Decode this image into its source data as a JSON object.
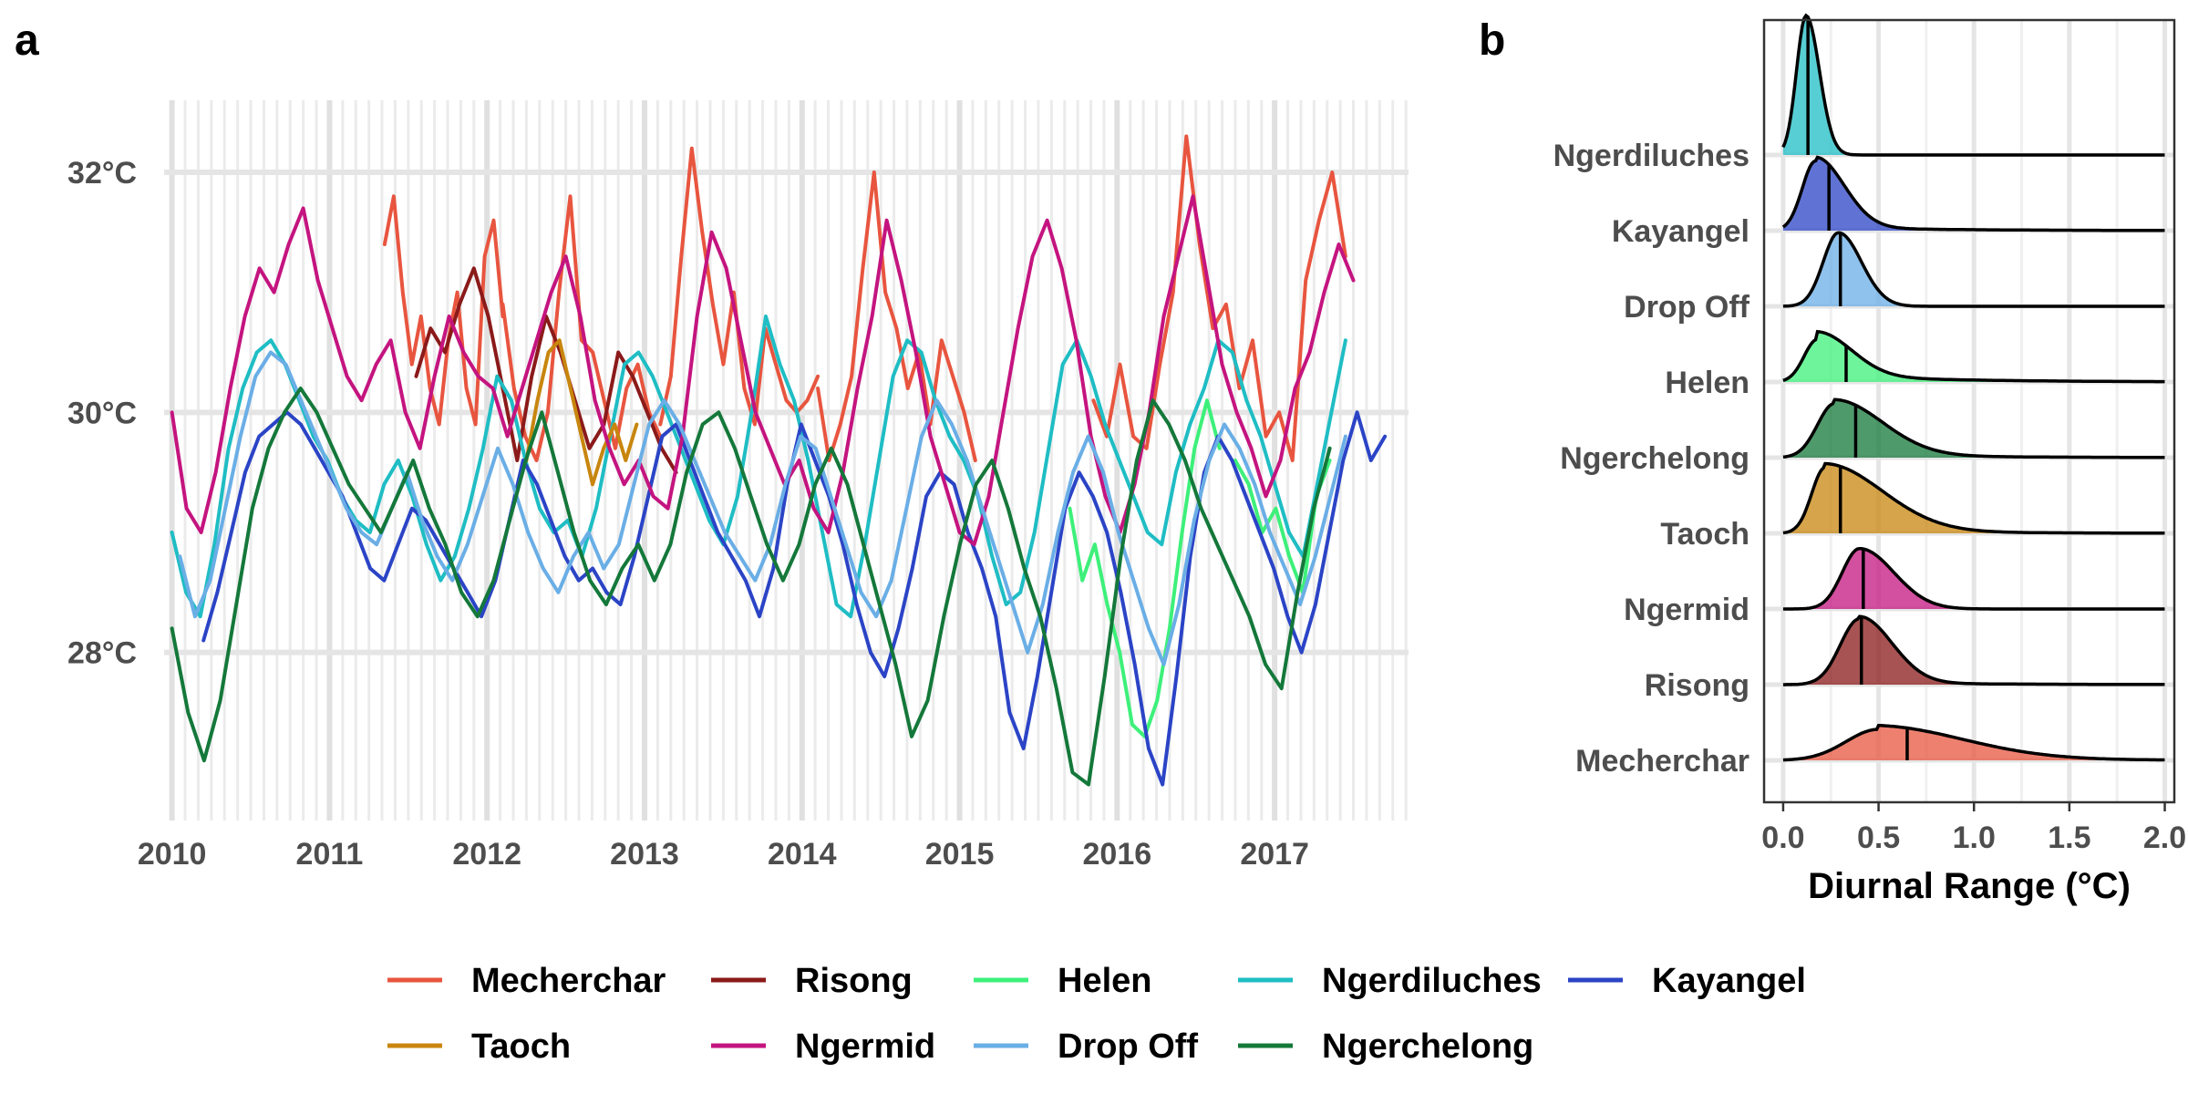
{
  "panels": {
    "a": {
      "label": "a"
    },
    "b": {
      "label": "b"
    }
  },
  "colors": {
    "Mecherchar": "#E8553F",
    "Risong": "#8B1A1A",
    "Helen": "#3DF07A",
    "Ngerdiluches": "#1FBDC4",
    "Kayangel": "#2B44C6",
    "Taoch": "#C8860E",
    "Ngermid": "#C4147F",
    "Drop Off": "#6AAEE6",
    "Ngerchelong": "#14783A"
  },
  "legend": {
    "items": [
      "Mecherchar",
      "Risong",
      "Helen",
      "Ngerdiluches",
      "Kayangel",
      "Taoch",
      "Ngermid",
      "Drop Off",
      "Ngerchelong"
    ]
  },
  "chart_data": [
    {
      "type": "line",
      "panel": "a",
      "title": "",
      "xlabel": "",
      "ylabel": "",
      "xlim": [
        2009.95,
        2017.85
      ],
      "ylim": [
        26.6,
        32.6
      ],
      "x_ticks": [
        2010,
        2011,
        2012,
        2013,
        2014,
        2015,
        2016,
        2017
      ],
      "x_tick_labels": [
        "2010",
        "2011",
        "2012",
        "2013",
        "2014",
        "2015",
        "2016",
        "2017"
      ],
      "y_ticks": [
        28,
        30,
        32
      ],
      "y_tick_labels": [
        "28°C",
        "30°C",
        "32°C"
      ],
      "grid": true,
      "legend_position": "bottom",
      "series": [
        {
          "name": "Mecherchar",
          "segments": [
            {
              "start": 2011.35,
              "end": 2012.1,
              "values": [
                31.4,
                31.8,
                31.0,
                30.4,
                30.8,
                30.2,
                29.9,
                30.6,
                31.0,
                30.2,
                29.9,
                31.3,
                31.6,
                30.8
              ]
            },
            {
              "start": 2012.1,
              "end": 2013.1,
              "values": [
                30.9,
                30.2,
                29.8,
                29.6,
                30.0,
                31.0,
                31.8,
                30.6,
                30.5,
                30.1,
                29.7,
                30.2,
                30.4,
                30.0,
                29.8
              ]
            },
            {
              "start": 2013.1,
              "end": 2014.1,
              "values": [
                29.9,
                30.3,
                31.3,
                32.2,
                31.5,
                30.9,
                30.4,
                31.0,
                30.2,
                29.9,
                30.7,
                30.4,
                30.1,
                30.0,
                30.1,
                30.3
              ]
            },
            {
              "start": 2014.1,
              "end": 2015.1,
              "values": [
                30.2,
                29.6,
                29.9,
                30.3,
                31.2,
                32.0,
                31.0,
                30.7,
                30.2,
                30.5,
                29.9,
                30.6,
                30.3,
                30.0,
                29.6
              ]
            },
            {
              "start": 2015.85,
              "end": 2017.45,
              "values": [
                30.1,
                29.8,
                30.4,
                29.8,
                29.7,
                30.4,
                31.0,
                32.3,
                31.4,
                30.7,
                30.9,
                30.2,
                30.6,
                29.8,
                30.0,
                29.6,
                31.1,
                31.6,
                32.0,
                31.3
              ]
            }
          ]
        },
        {
          "name": "Risong",
          "segments": [
            {
              "start": 2011.55,
              "end": 2013.2,
              "values": [
                30.3,
                30.7,
                30.5,
                30.9,
                31.2,
                30.8,
                30.2,
                29.6,
                30.3,
                30.8,
                30.5,
                30.1,
                29.7,
                29.9,
                30.5,
                30.3,
                30.0,
                29.7,
                29.5
              ]
            }
          ]
        },
        {
          "name": "Helen",
          "segments": [
            {
              "start": 2015.7,
              "end": 2016.65,
              "values": [
                29.2,
                28.6,
                28.9,
                28.4,
                28.0,
                27.4,
                27.3,
                27.6,
                28.2,
                29.0,
                29.7,
                30.1,
                29.7
              ]
            },
            {
              "start": 2016.75,
              "end": 2017.35,
              "values": [
                29.6,
                29.4,
                29.0,
                29.2,
                28.8,
                28.5,
                29.3,
                29.6
              ]
            }
          ]
        },
        {
          "name": "Ngerdiluches",
          "segments": [
            {
              "start": 2010.0,
              "end": 2017.45,
              "values": [
                29.0,
                28.5,
                28.3,
                28.9,
                29.7,
                30.2,
                30.5,
                30.6,
                30.4,
                30.1,
                29.8,
                29.6,
                29.3,
                29.1,
                29.0,
                29.4,
                29.6,
                29.3,
                28.9,
                28.6,
                28.8,
                29.2,
                29.7,
                30.3,
                30.1,
                29.6,
                29.2,
                29.0,
                29.1,
                28.8,
                29.2,
                29.8,
                30.4,
                30.5,
                30.3,
                30.0,
                29.7,
                29.4,
                29.1,
                28.9,
                29.3,
                30.0,
                30.8,
                30.4,
                30.1,
                29.6,
                29.0,
                28.4,
                28.3,
                28.9,
                29.6,
                30.3,
                30.6,
                30.5,
                30.1,
                29.8,
                29.6,
                29.3,
                28.8,
                28.4,
                28.5,
                29.0,
                29.7,
                30.4,
                30.6,
                30.3,
                29.9,
                29.6,
                29.3,
                29.0,
                28.9,
                29.5,
                29.9,
                30.2,
                30.6,
                30.5,
                30.1,
                29.8,
                29.4,
                29.0,
                28.8,
                29.4,
                30.0,
                30.6
              ]
            }
          ]
        },
        {
          "name": "Kayangel",
          "segments": [
            {
              "start": 2010.2,
              "end": 2017.7,
              "values": [
                28.1,
                28.5,
                29.0,
                29.5,
                29.8,
                29.9,
                30.0,
                29.9,
                29.7,
                29.5,
                29.3,
                29.0,
                28.7,
                28.6,
                28.9,
                29.2,
                29.1,
                28.9,
                28.7,
                28.5,
                28.3,
                28.6,
                29.1,
                29.6,
                29.4,
                29.1,
                28.8,
                28.6,
                28.7,
                28.5,
                28.4,
                28.8,
                29.3,
                29.8,
                29.9,
                29.6,
                29.3,
                29.0,
                28.8,
                28.6,
                28.3,
                28.7,
                29.4,
                29.9,
                29.6,
                29.3,
                28.9,
                28.4,
                28.0,
                27.8,
                28.2,
                28.7,
                29.3,
                29.5,
                29.4,
                29.0,
                28.7,
                28.3,
                27.5,
                27.2,
                27.8,
                28.5,
                29.2,
                29.5,
                29.3,
                29.0,
                28.5,
                27.9,
                27.2,
                26.9,
                27.8,
                28.8,
                29.5,
                29.8,
                29.6,
                29.3,
                29.0,
                28.7,
                28.3,
                28.0,
                28.4,
                29.0,
                29.6,
                30.0,
                29.6,
                29.8
              ]
            }
          ]
        },
        {
          "name": "Taoch",
          "segments": [
            {
              "start": 2012.25,
              "end": 2012.95,
              "values": [
                29.6,
                30.1,
                30.5,
                30.6,
                30.2,
                29.8,
                29.4,
                29.7,
                29.9,
                29.6,
                29.9
              ]
            }
          ]
        },
        {
          "name": "Ngermid",
          "segments": [
            {
              "start": 2010.0,
              "end": 2017.5,
              "values": [
                30.0,
                29.2,
                29.0,
                29.5,
                30.2,
                30.8,
                31.2,
                31.0,
                31.4,
                31.7,
                31.1,
                30.7,
                30.3,
                30.1,
                30.4,
                30.6,
                30.0,
                29.7,
                30.3,
                30.8,
                30.5,
                30.3,
                30.2,
                29.8,
                30.2,
                30.6,
                31.0,
                31.3,
                30.8,
                30.1,
                29.7,
                29.4,
                29.6,
                29.3,
                29.2,
                29.8,
                30.8,
                31.5,
                31.2,
                30.6,
                30.0,
                29.7,
                29.4,
                29.6,
                29.2,
                29.0,
                29.5,
                30.2,
                30.8,
                31.6,
                31.1,
                30.5,
                29.8,
                29.4,
                29.0,
                28.9,
                29.3,
                30.0,
                30.7,
                31.3,
                31.6,
                31.2,
                30.6,
                29.8,
                29.3,
                29.0,
                29.4,
                30.0,
                30.8,
                31.3,
                31.8,
                31.1,
                30.4,
                30.0,
                29.7,
                29.3,
                29.6,
                30.2,
                30.5,
                31.0,
                31.4,
                31.1
              ]
            }
          ]
        },
        {
          "name": "Drop Off",
          "segments": [
            {
              "start": 2010.05,
              "end": 2017.45,
              "values": [
                28.8,
                28.3,
                28.6,
                29.2,
                29.8,
                30.3,
                30.5,
                30.4,
                30.1,
                29.8,
                29.5,
                29.2,
                29.0,
                28.9,
                29.2,
                29.5,
                29.1,
                28.8,
                28.6,
                28.9,
                29.3,
                29.7,
                29.4,
                29.0,
                28.7,
                28.5,
                28.8,
                29.0,
                28.7,
                28.9,
                29.4,
                29.9,
                30.1,
                29.9,
                29.6,
                29.3,
                29.0,
                28.8,
                28.6,
                28.9,
                29.4,
                29.8,
                29.7,
                29.3,
                28.9,
                28.5,
                28.3,
                28.6,
                29.2,
                29.8,
                30.1,
                29.9,
                29.6,
                29.2,
                28.8,
                28.4,
                28.0,
                28.4,
                29.0,
                29.5,
                29.8,
                29.5,
                29.0,
                28.6,
                28.2,
                27.9,
                28.4,
                29.1,
                29.6,
                29.9,
                29.7,
                29.4,
                29.0,
                28.7,
                28.4,
                28.8,
                29.3,
                29.8
              ]
            }
          ]
        },
        {
          "name": "Ngerchelong",
          "segments": [
            {
              "start": 2010.0,
              "end": 2017.35,
              "values": [
                28.2,
                27.5,
                27.1,
                27.6,
                28.4,
                29.2,
                29.7,
                30.0,
                30.2,
                30.0,
                29.7,
                29.4,
                29.2,
                29.0,
                29.3,
                29.6,
                29.2,
                28.9,
                28.5,
                28.3,
                28.6,
                29.1,
                29.6,
                30.0,
                29.5,
                29.0,
                28.6,
                28.4,
                28.7,
                28.9,
                28.6,
                28.9,
                29.5,
                29.9,
                30.0,
                29.7,
                29.3,
                28.9,
                28.6,
                28.9,
                29.4,
                29.7,
                29.4,
                28.9,
                28.4,
                27.9,
                27.3,
                27.6,
                28.3,
                28.9,
                29.4,
                29.6,
                29.2,
                28.7,
                28.3,
                27.7,
                27.0,
                26.9,
                27.8,
                28.8,
                29.6,
                30.1,
                29.9,
                29.6,
                29.2,
                28.9,
                28.6,
                28.3,
                27.9,
                27.7,
                28.5,
                29.2,
                29.7
              ]
            }
          ]
        }
      ]
    },
    {
      "type": "area",
      "subtype": "ridgeline",
      "panel": "b",
      "title": "",
      "xlabel": "Diurnal Range (°C)",
      "ylabel": "",
      "xlim": [
        -0.1,
        2.05
      ],
      "x_ticks": [
        0.0,
        0.5,
        1.0,
        1.5,
        2.0
      ],
      "x_tick_labels": [
        "0.0",
        "0.5",
        "1.0",
        "1.5",
        "2.0"
      ],
      "grid": true,
      "categories": [
        "Ngerdiluches",
        "Kayangel",
        "Drop Off",
        "Helen",
        "Ngerchelong",
        "Taoch",
        "Ngermid",
        "Risong",
        "Mecherchar"
      ],
      "series": [
        {
          "name": "Ngerdiluches",
          "median": 0.13,
          "peak": 0.12,
          "sd_left": 0.05,
          "sd_right": 0.07,
          "height": 1.8,
          "tail": 0.0
        },
        {
          "name": "Kayangel",
          "median": 0.24,
          "peak": 0.17,
          "sd_left": 0.07,
          "sd_right": 0.15,
          "height": 0.9,
          "tail": 0.05
        },
        {
          "name": "Drop Off",
          "median": 0.3,
          "peak": 0.29,
          "sd_left": 0.08,
          "sd_right": 0.12,
          "height": 0.95,
          "tail": 0.0
        },
        {
          "name": "Helen",
          "median": 0.33,
          "peak": 0.18,
          "sd_left": 0.07,
          "sd_right": 0.18,
          "height": 0.55,
          "tail": 0.1
        },
        {
          "name": "Ngerchelong",
          "median": 0.38,
          "peak": 0.27,
          "sd_left": 0.09,
          "sd_right": 0.25,
          "height": 0.7,
          "tail": 0.05
        },
        {
          "name": "Taoch",
          "median": 0.3,
          "peak": 0.22,
          "sd_left": 0.07,
          "sd_right": 0.3,
          "height": 0.85,
          "tail": 0.05
        },
        {
          "name": "Ngermid",
          "median": 0.42,
          "peak": 0.4,
          "sd_left": 0.09,
          "sd_right": 0.18,
          "height": 0.78,
          "tail": 0.0
        },
        {
          "name": "Risong",
          "median": 0.41,
          "peak": 0.4,
          "sd_left": 0.1,
          "sd_right": 0.17,
          "height": 0.85,
          "tail": 0.03
        },
        {
          "name": "Mecherchar",
          "median": 0.65,
          "peak": 0.5,
          "sd_left": 0.17,
          "sd_right": 0.45,
          "height": 0.4,
          "tail": 0.05
        }
      ]
    }
  ]
}
